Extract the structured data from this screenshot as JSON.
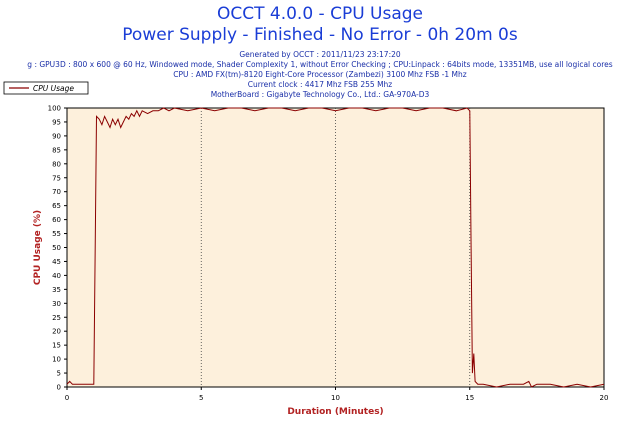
{
  "header": {
    "title": "OCCT 4.0.0 - CPU Usage",
    "subtitle": "Power Supply - Finished - No Error - 0h 20m 0s",
    "info_lines": [
      "Generated by OCCT : 2011/11/23 23:17:20",
      "g : GPU3D : 800 x 600 @ 60 Hz, Windowed mode, Shader Complexity 1, without Error Checking ; CPU:Linpack : 64bits mode, 13351MB, use all logical cores",
      "CPU : AMD FX(tm)-8120 Eight-Core Processor (Zambezi) 3100 Mhz FSB -1 Mhz",
      "Current clock : 4417 Mhz FSB 255 Mhz",
      "MotherBoard : Gigabyte Technology Co., Ltd.: GA-970A-D3"
    ]
  },
  "colors": {
    "title": "#1a3dd6",
    "info": "#1a2fa8",
    "plot_bg": "#fdf0dc",
    "line": "#8b0000",
    "axis_label": "#b22222"
  },
  "chart_data": {
    "type": "line",
    "xlabel": "Duration (Minutes)",
    "ylabel": "CPU Usage (%)",
    "xlim": [
      0,
      20
    ],
    "ylim": [
      0,
      100
    ],
    "xticks": [
      0,
      5,
      10,
      15,
      20
    ],
    "yticks": [
      0,
      5,
      10,
      15,
      20,
      25,
      30,
      35,
      40,
      45,
      50,
      55,
      60,
      65,
      70,
      75,
      80,
      85,
      90,
      95,
      100
    ],
    "legend_position": "top-left",
    "series": [
      {
        "name": "CPU Usage",
        "x": [
          0,
          0.1,
          0.2,
          0.4,
          0.6,
          0.8,
          1.0,
          1.05,
          1.1,
          1.2,
          1.3,
          1.4,
          1.5,
          1.6,
          1.7,
          1.8,
          1.9,
          2.0,
          2.1,
          2.2,
          2.3,
          2.4,
          2.5,
          2.6,
          2.7,
          2.8,
          3.0,
          3.2,
          3.4,
          3.6,
          3.8,
          4.0,
          4.5,
          5.0,
          5.5,
          6.0,
          6.5,
          7.0,
          7.5,
          8.0,
          8.5,
          9.0,
          9.5,
          10.0,
          10.5,
          11.0,
          11.5,
          12.0,
          12.5,
          13.0,
          13.5,
          14.0,
          14.5,
          14.9,
          15.0,
          15.05,
          15.1,
          15.15,
          15.2,
          15.3,
          15.5,
          16.0,
          16.5,
          17.0,
          17.2,
          17.3,
          17.5,
          18.0,
          18.5,
          19.0,
          19.5,
          20.0
        ],
        "y": [
          1,
          2,
          1,
          1,
          1,
          1,
          1,
          50,
          97,
          96,
          94,
          97,
          95,
          93,
          96,
          94,
          96,
          93,
          95,
          97,
          96,
          98,
          97,
          99,
          97,
          99,
          98,
          99,
          99,
          100,
          99,
          100,
          99,
          100,
          99,
          100,
          100,
          99,
          100,
          100,
          99,
          100,
          100,
          99,
          100,
          100,
          99,
          100,
          100,
          99,
          100,
          100,
          99,
          100,
          99,
          50,
          5,
          12,
          2,
          1,
          1,
          0,
          1,
          1,
          2,
          0,
          1,
          1,
          0,
          1,
          0,
          1
        ]
      }
    ]
  }
}
